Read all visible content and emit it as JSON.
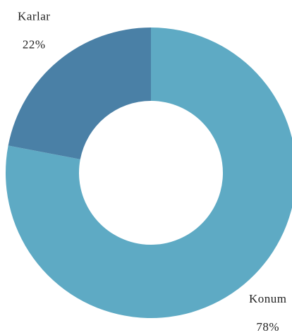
{
  "chart_data": {
    "type": "donut",
    "categories": [
      "Konum",
      "Karlar"
    ],
    "values": [
      78,
      22
    ],
    "value_labels": [
      "78%",
      "22%"
    ],
    "colors": [
      "#5eaac4",
      "#4a80a6"
    ]
  }
}
